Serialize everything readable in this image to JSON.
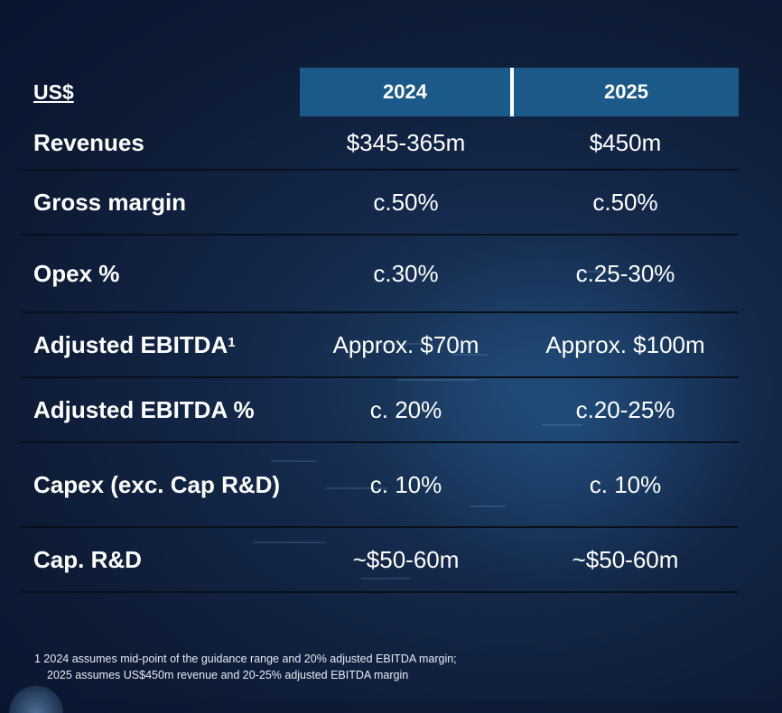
{
  "header": {
    "currency_label": "US$",
    "years": [
      "2024",
      "2025"
    ]
  },
  "rows": [
    {
      "label": "Revenues",
      "v2024": "$345-365m",
      "v2025": "$450m"
    },
    {
      "label": "Gross margin",
      "v2024": "c.50%",
      "v2025": "c.50%"
    },
    {
      "label": "Opex %",
      "v2024": "c.30%",
      "v2025": "c.25-30%"
    },
    {
      "label": "Adjusted EBITDA",
      "superscript": "1",
      "v2024": "Approx. $70m",
      "v2025": "Approx. $100m"
    },
    {
      "label": "Adjusted EBITDA %",
      "v2024": "c. 20%",
      "v2025": "c.20-25%"
    },
    {
      "label": "Capex (exc. Cap R&D)",
      "v2024": "c. 10%",
      "v2025": "c. 10%"
    },
    {
      "label": "Cap. R&D",
      "v2024": "~$50-60m",
      "v2025": "~$50-60m"
    }
  ],
  "footnote": {
    "line1": "1 2024 assumes mid-point of the guidance range and 20% adjusted EBITDA margin;",
    "line2": "2025 assumes US$450m revenue and 20-25% adjusted EBITDA margin"
  },
  "colors": {
    "header_fill": "#1b5a88",
    "background": "#0d1b35",
    "row_divider": "#0a0f1a",
    "text": "#ffffff"
  }
}
